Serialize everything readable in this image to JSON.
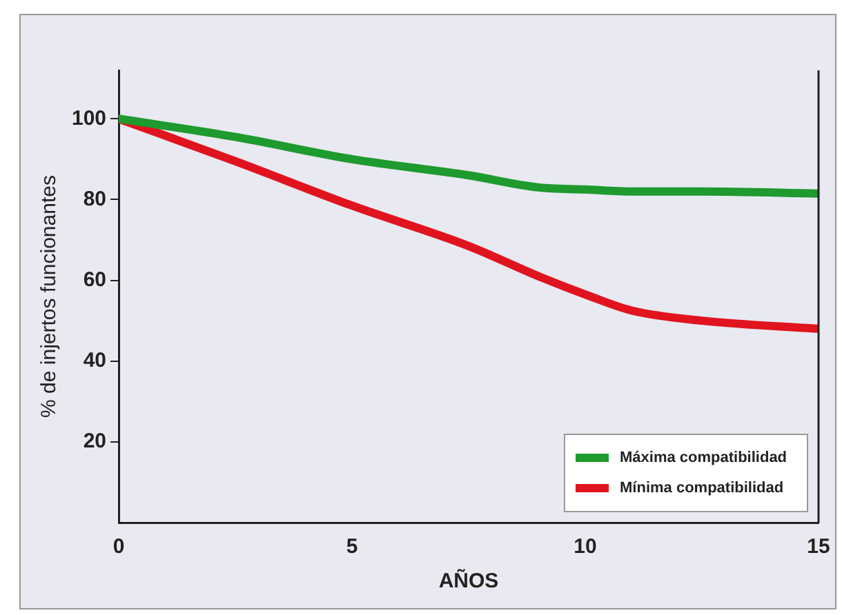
{
  "chart_data": {
    "type": "line",
    "xlabel": "AÑOS",
    "ylabel": "% de injertos funcionantes",
    "xlim": [
      0,
      15
    ],
    "xticks": [
      0,
      5,
      10,
      15
    ],
    "ylim": [
      0,
      112
    ],
    "yticks": [
      20,
      40,
      60,
      80,
      100
    ],
    "x": [
      0,
      2.5,
      5,
      7.5,
      9,
      10,
      11,
      12.5,
      15
    ],
    "series": [
      {
        "name": "Máxima compatibilidad",
        "color": "#1e9a2e",
        "values": [
          100,
          95.5,
          90,
          86,
          83,
          82.5,
          82,
          82,
          81.5
        ]
      },
      {
        "name": "Mínima compatibilidad",
        "color": "#e0141e",
        "values": [
          100,
          89.5,
          78.5,
          68.5,
          61,
          56.5,
          52.5,
          50,
          48
        ]
      }
    ],
    "legend": "bottom right",
    "grid": false,
    "marker": "none",
    "line_style": "solid"
  }
}
